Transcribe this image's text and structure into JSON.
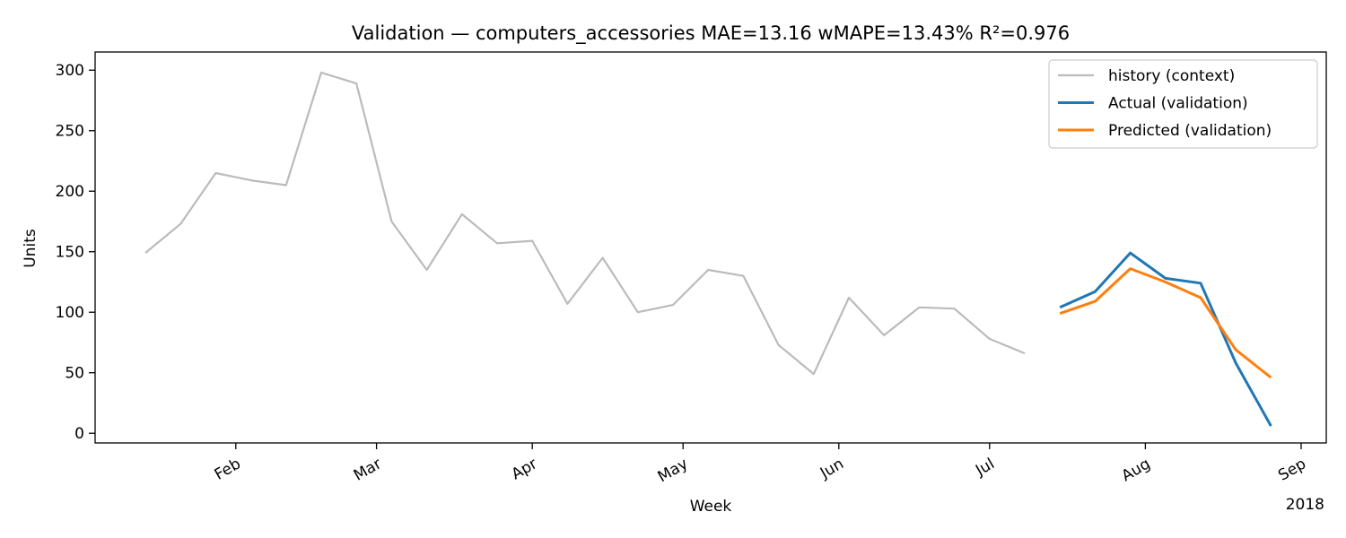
{
  "chart_data": {
    "type": "line",
    "title": "Validation — computers_accessories   MAE=13.16  wMAPE=13.43%  R²=0.976",
    "xlabel": "Week",
    "ylabel": "Units",
    "x_offset_label": "2018",
    "xlim": [
      "2018-01-04",
      "2018-09-06"
    ],
    "ylim": [
      -8,
      315
    ],
    "y_ticks": [
      0,
      50,
      100,
      150,
      200,
      250,
      300
    ],
    "x_ticks": [
      {
        "date": "2018-02-01",
        "label": "Feb"
      },
      {
        "date": "2018-03-01",
        "label": "Mar"
      },
      {
        "date": "2018-04-01",
        "label": "Apr"
      },
      {
        "date": "2018-05-01",
        "label": "May"
      },
      {
        "date": "2018-06-01",
        "label": "Jun"
      },
      {
        "date": "2018-07-01",
        "label": "Jul"
      },
      {
        "date": "2018-08-01",
        "label": "Aug"
      },
      {
        "date": "2018-09-01",
        "label": "Sep"
      }
    ],
    "grid": false,
    "legend_position": "top-right",
    "series": [
      {
        "name": "history (context)",
        "color": "#bbbbbb",
        "x": [
          "2018-01-14",
          "2018-01-21",
          "2018-01-28",
          "2018-02-04",
          "2018-02-11",
          "2018-02-18",
          "2018-02-25",
          "2018-03-04",
          "2018-03-11",
          "2018-03-18",
          "2018-03-25",
          "2018-04-01",
          "2018-04-08",
          "2018-04-15",
          "2018-04-22",
          "2018-04-29",
          "2018-05-06",
          "2018-05-13",
          "2018-05-20",
          "2018-05-27",
          "2018-06-03",
          "2018-06-10",
          "2018-06-17",
          "2018-06-24",
          "2018-07-01",
          "2018-07-08"
        ],
        "y": [
          149,
          173,
          215,
          209,
          205,
          298,
          289,
          175,
          135,
          181,
          157,
          159,
          107,
          145,
          100,
          106,
          135,
          130,
          73,
          49,
          112,
          81,
          104,
          103,
          78,
          66
        ]
      },
      {
        "name": "Actual (validation)",
        "color": "#1f77b4",
        "x": [
          "2018-07-15",
          "2018-07-22",
          "2018-07-29",
          "2018-08-05",
          "2018-08-12",
          "2018-08-19",
          "2018-08-26"
        ],
        "y": [
          104,
          117,
          149,
          128,
          124,
          58,
          6
        ]
      },
      {
        "name": "Predicted (validation)",
        "color": "#ff7f0e",
        "x": [
          "2018-07-15",
          "2018-07-22",
          "2018-07-29",
          "2018-08-05",
          "2018-08-12",
          "2018-08-19",
          "2018-08-26"
        ],
        "y": [
          99,
          109,
          136,
          125,
          112,
          69,
          46
        ]
      }
    ]
  }
}
